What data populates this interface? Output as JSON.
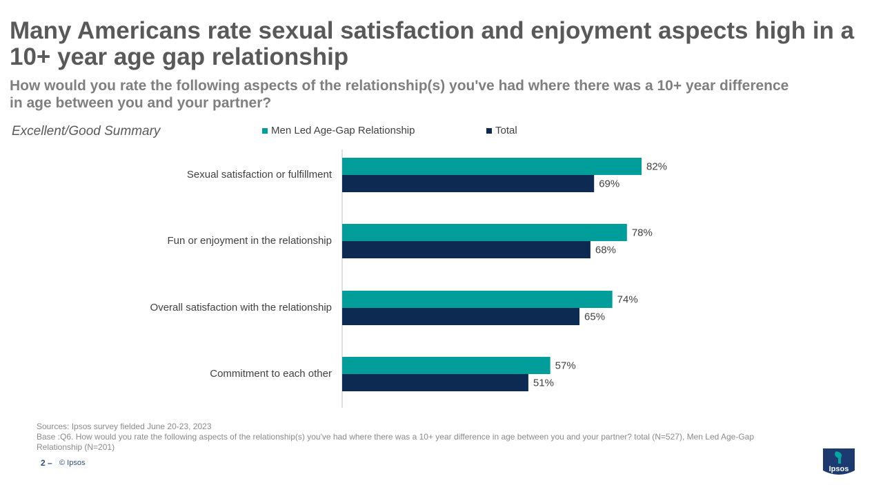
{
  "header": {
    "title": "Many Americans rate sexual satisfaction and enjoyment aspects high in a 10+ year age gap relationship",
    "subtitle": "How would you rate the following aspects of the relationship(s) you've had where there was a 10+ year difference in age between you and your partner?",
    "summary_label": "Excellent/Good Summary"
  },
  "colors": {
    "title": "#595959",
    "subtitle": "#7f7f7f",
    "summary": "#595959",
    "series_men": "#009d9a",
    "series_total": "#0d2b52",
    "axis": "#bfbfbf",
    "label_text": "#404040"
  },
  "chart_data": {
    "type": "bar",
    "orientation": "horizontal",
    "categories": [
      "Sexual satisfaction or fulfillment",
      "Fun or enjoyment in the relationship",
      "Overall satisfaction with the relationship",
      "Commitment to each other"
    ],
    "series": [
      {
        "name": "Men Led Age-Gap Relationship",
        "values": [
          82,
          78,
          74,
          57
        ],
        "labels": [
          "82%",
          "78%",
          "74%",
          "57%"
        ],
        "color": "#009d9a"
      },
      {
        "name": "Total",
        "values": [
          69,
          68,
          65,
          51
        ],
        "labels": [
          "69%",
          "68%",
          "65%",
          "51%"
        ],
        "color": "#0d2b52"
      }
    ],
    "xlim": [
      0,
      100
    ],
    "grid": false,
    "legend": "top"
  },
  "footer": {
    "sources": "Sources: Ipsos survey fielded June 20-23, 2023",
    "base": "Base :Q6. How would you rate the following aspects of the relationship(s) you've had where there was a 10+ year difference in age between you and your partner? total (N=527), Men Led Age-Gap Relationship (N=201)",
    "page_number": "2",
    "page_separator": "–",
    "copyright": "© Ipsos",
    "logo_text": "Ipsos"
  }
}
